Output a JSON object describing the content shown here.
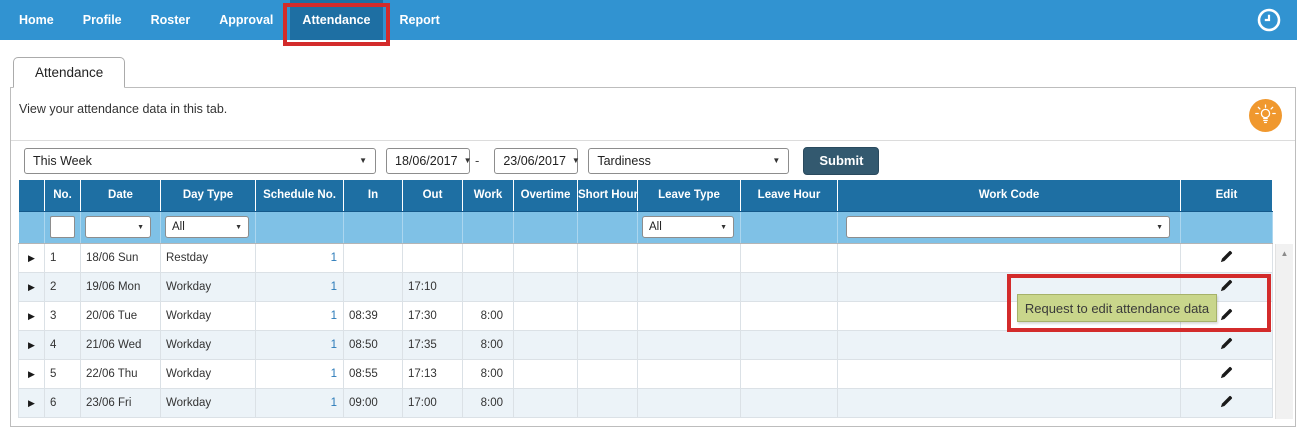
{
  "nav": {
    "items": [
      {
        "label": "Home",
        "active": false
      },
      {
        "label": "Profile",
        "active": false
      },
      {
        "label": "Roster",
        "active": false
      },
      {
        "label": "Approval",
        "active": false
      },
      {
        "label": "Attendance",
        "active": true
      },
      {
        "label": "Report",
        "active": false
      }
    ]
  },
  "tab": {
    "label": "Attendance"
  },
  "intro": {
    "text": "View your attendance data in this tab."
  },
  "filters": {
    "period": "This Week",
    "date_from": "18/06/2017",
    "date_separator": "-",
    "date_to": "23/06/2017",
    "category": "Tardiness",
    "submit_label": "Submit"
  },
  "table": {
    "columns": [
      "",
      "No.",
      "Date",
      "Day Type",
      "Schedule No.",
      "In",
      "Out",
      "Work",
      "Overtime",
      "Short Hour",
      "Leave Type",
      "Leave Hour",
      "Work Code",
      "Edit"
    ],
    "filter_row": {
      "no": "",
      "date": "",
      "day_type": "All",
      "leave_type": "All",
      "work_code": ""
    },
    "rows": [
      {
        "no": "1",
        "date": "18/06 Sun",
        "day_type": "Restday",
        "schedule_no": "1",
        "in": "",
        "out": "",
        "work": "",
        "overtime": "",
        "short_hour": "",
        "leave_type": "",
        "leave_hour": "",
        "work_code": ""
      },
      {
        "no": "2",
        "date": "19/06 Mon",
        "day_type": "Workday",
        "schedule_no": "1",
        "in": "",
        "out": "17:10",
        "work": "",
        "overtime": "",
        "short_hour": "",
        "leave_type": "",
        "leave_hour": "",
        "work_code": ""
      },
      {
        "no": "3",
        "date": "20/06 Tue",
        "day_type": "Workday",
        "schedule_no": "1",
        "in": "08:39",
        "out": "17:30",
        "work": "8:00",
        "overtime": "",
        "short_hour": "",
        "leave_type": "",
        "leave_hour": "",
        "work_code": ""
      },
      {
        "no": "4",
        "date": "21/06 Wed",
        "day_type": "Workday",
        "schedule_no": "1",
        "in": "08:50",
        "out": "17:35",
        "work": "8:00",
        "overtime": "",
        "short_hour": "",
        "leave_type": "",
        "leave_hour": "",
        "work_code": ""
      },
      {
        "no": "5",
        "date": "22/06 Thu",
        "day_type": "Workday",
        "schedule_no": "1",
        "in": "08:55",
        "out": "17:13",
        "work": "8:00",
        "overtime": "",
        "short_hour": "",
        "leave_type": "",
        "leave_hour": "",
        "work_code": ""
      },
      {
        "no": "6",
        "date": "23/06 Fri",
        "day_type": "Workday",
        "schedule_no": "1",
        "in": "09:00",
        "out": "17:00",
        "work": "8:00",
        "overtime": "",
        "short_hour": "",
        "leave_type": "",
        "leave_hour": "",
        "work_code": ""
      }
    ]
  },
  "tooltip": {
    "text": "Request to edit attendance data"
  },
  "icons": {
    "expand": "▶",
    "dropdown": "▼",
    "scroll_up": "▲"
  },
  "colors": {
    "navbar": "#3193d1",
    "nav_active": "#1e6fa3",
    "table_header": "#1e6fa3",
    "table_filter_row": "#7fc1e6",
    "row_alt": "#ecf3f8",
    "annotation_red": "#d32b2b",
    "tooltip_bg": "#c9d68b",
    "submit_bg": "#33596f",
    "schedule_link": "#2a7ab9",
    "lightbulb_bg": "#f0982e"
  }
}
